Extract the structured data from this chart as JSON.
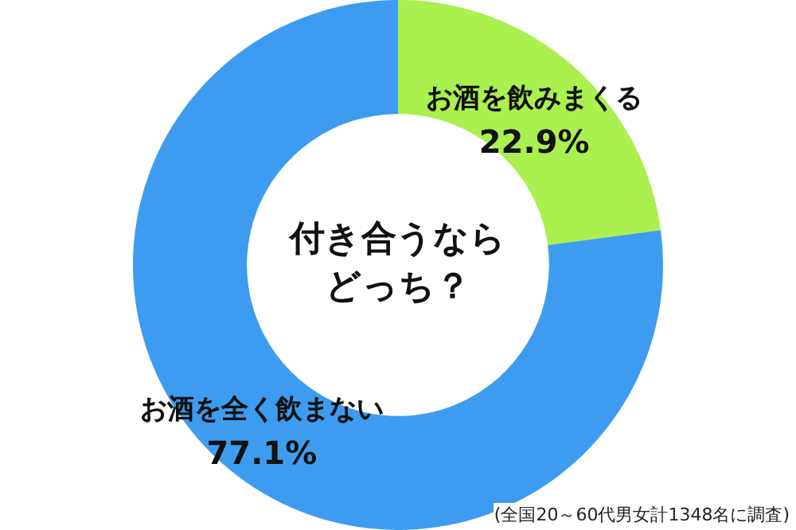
{
  "chart_data": {
    "type": "donut",
    "title": "付き合うならどっち？",
    "categories": [
      "お酒を飲みまくる",
      "お酒を全く飲まない"
    ],
    "values": [
      22.9,
      77.1
    ],
    "colors": [
      "#aaf04e",
      "#3d9cf0"
    ],
    "value_labels": [
      "22.9%",
      "77.1%"
    ],
    "legend": false,
    "annotations": [
      "(全国20～60代男女計1348名に調査)"
    ]
  }
}
